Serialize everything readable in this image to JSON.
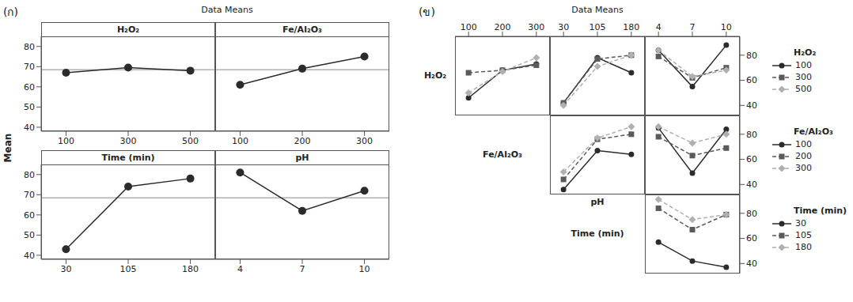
{
  "chart_data": [
    {
      "type": "line",
      "label": "(ก)",
      "title": "Data Means",
      "y_label": "Mean",
      "ylim": [
        38,
        85
      ],
      "yticks": [
        40,
        50,
        60,
        70,
        80
      ],
      "mean_line": 68.5,
      "color": "#2b2b2b",
      "marker": "circle",
      "panels": [
        {
          "title": "H₂O₂",
          "categories": [
            100,
            300,
            500
          ],
          "values": [
            67,
            69.5,
            68
          ]
        },
        {
          "title": "Fe/Al₂O₃",
          "categories": [
            100,
            200,
            300
          ],
          "values": [
            61,
            69,
            75
          ]
        },
        {
          "title": "Time (min)",
          "categories": [
            30,
            105,
            180
          ],
          "values": [
            43,
            74,
            78
          ]
        },
        {
          "title": "pH",
          "categories": [
            4,
            7,
            10
          ],
          "values": [
            81,
            62,
            72
          ]
        }
      ]
    },
    {
      "type": "line",
      "label": "(ข)",
      "title": "Data Means",
      "legend": "right",
      "ylim": [
        32,
        95
      ],
      "yticks": [
        40,
        60,
        80
      ],
      "factors": [
        "H₂O₂",
        "Fe/Al₂O₃",
        "Time (min)",
        "pH"
      ],
      "panels": [
        {
          "lines_factor": "H₂O₂",
          "x_factor": "Fe/Al₂O₃",
          "categories": [
            100,
            200,
            300
          ],
          "series": [
            {
              "name": "100",
              "color": "#2b2b2b",
              "marker": "circle",
              "line_style": "solid",
              "values": [
                46,
                68,
                73
              ]
            },
            {
              "name": "300",
              "color": "#5a5a5a",
              "marker": "square",
              "line_style": "dashed",
              "values": [
                66,
                68,
                72
              ]
            },
            {
              "name": "500",
              "color": "#b0b0b0",
              "marker": "diamond",
              "line_style": "dashed",
              "values": [
                50,
                67,
                78
              ]
            }
          ]
        },
        {
          "lines_factor": "H₂O₂",
          "x_factor": "Time (min)",
          "categories": [
            30,
            105,
            180
          ],
          "series": [
            {
              "name": "100",
              "color": "#2b2b2b",
              "marker": "circle",
              "line_style": "solid",
              "values": [
                42,
                78,
                66
              ]
            },
            {
              "name": "300",
              "color": "#5a5a5a",
              "marker": "square",
              "line_style": "dashed",
              "values": [
                42,
                77,
                80
              ]
            },
            {
              "name": "500",
              "color": "#b0b0b0",
              "marker": "diamond",
              "line_style": "dashed",
              "values": [
                40,
                71,
                80
              ]
            }
          ]
        },
        {
          "lines_factor": "H₂O₂",
          "x_factor": "pH",
          "categories": [
            4,
            7,
            10
          ],
          "series": [
            {
              "name": "100",
              "color": "#2b2b2b",
              "marker": "circle",
              "line_style": "solid",
              "values": [
                84,
                55,
                88
              ]
            },
            {
              "name": "300",
              "color": "#5a5a5a",
              "marker": "square",
              "line_style": "dashed",
              "values": [
                79,
                62,
                70
              ]
            },
            {
              "name": "500",
              "color": "#b0b0b0",
              "marker": "diamond",
              "line_style": "dashed",
              "values": [
                84,
                63,
                68
              ]
            }
          ]
        },
        {
          "lines_factor": "Fe/Al₂O₃",
          "x_factor": "Time (min)",
          "categories": [
            30,
            105,
            180
          ],
          "series": [
            {
              "name": "100",
              "color": "#2b2b2b",
              "marker": "circle",
              "line_style": "solid",
              "values": [
                36,
                67,
                64
              ]
            },
            {
              "name": "200",
              "color": "#5a5a5a",
              "marker": "square",
              "line_style": "dashed",
              "values": [
                44,
                76,
                80
              ]
            },
            {
              "name": "300",
              "color": "#b0b0b0",
              "marker": "diamond",
              "line_style": "dashed",
              "values": [
                50,
                77,
                86
              ]
            }
          ]
        },
        {
          "lines_factor": "Fe/Al₂O₃",
          "x_factor": "pH",
          "categories": [
            4,
            7,
            10
          ],
          "series": [
            {
              "name": "100",
              "color": "#2b2b2b",
              "marker": "circle",
              "line_style": "solid",
              "values": [
                85,
                49,
                84
              ]
            },
            {
              "name": "200",
              "color": "#5a5a5a",
              "marker": "square",
              "line_style": "dashed",
              "values": [
                78,
                63,
                69
              ]
            },
            {
              "name": "300",
              "color": "#b0b0b0",
              "marker": "diamond",
              "line_style": "dashed",
              "values": [
                86,
                73,
                80
              ]
            }
          ]
        },
        {
          "lines_factor": "Time (min)",
          "x_factor": "pH",
          "categories": [
            4,
            7,
            10
          ],
          "series": [
            {
              "name": "30",
              "color": "#2b2b2b",
              "marker": "circle",
              "line_style": "solid",
              "values": [
                57,
                42,
                37
              ]
            },
            {
              "name": "105",
              "color": "#5a5a5a",
              "marker": "square",
              "line_style": "dashed",
              "values": [
                84,
                67,
                79
              ]
            },
            {
              "name": "180",
              "color": "#b0b0b0",
              "marker": "diamond",
              "line_style": "dashed",
              "values": [
                91,
                75,
                79
              ]
            }
          ]
        }
      ]
    }
  ]
}
